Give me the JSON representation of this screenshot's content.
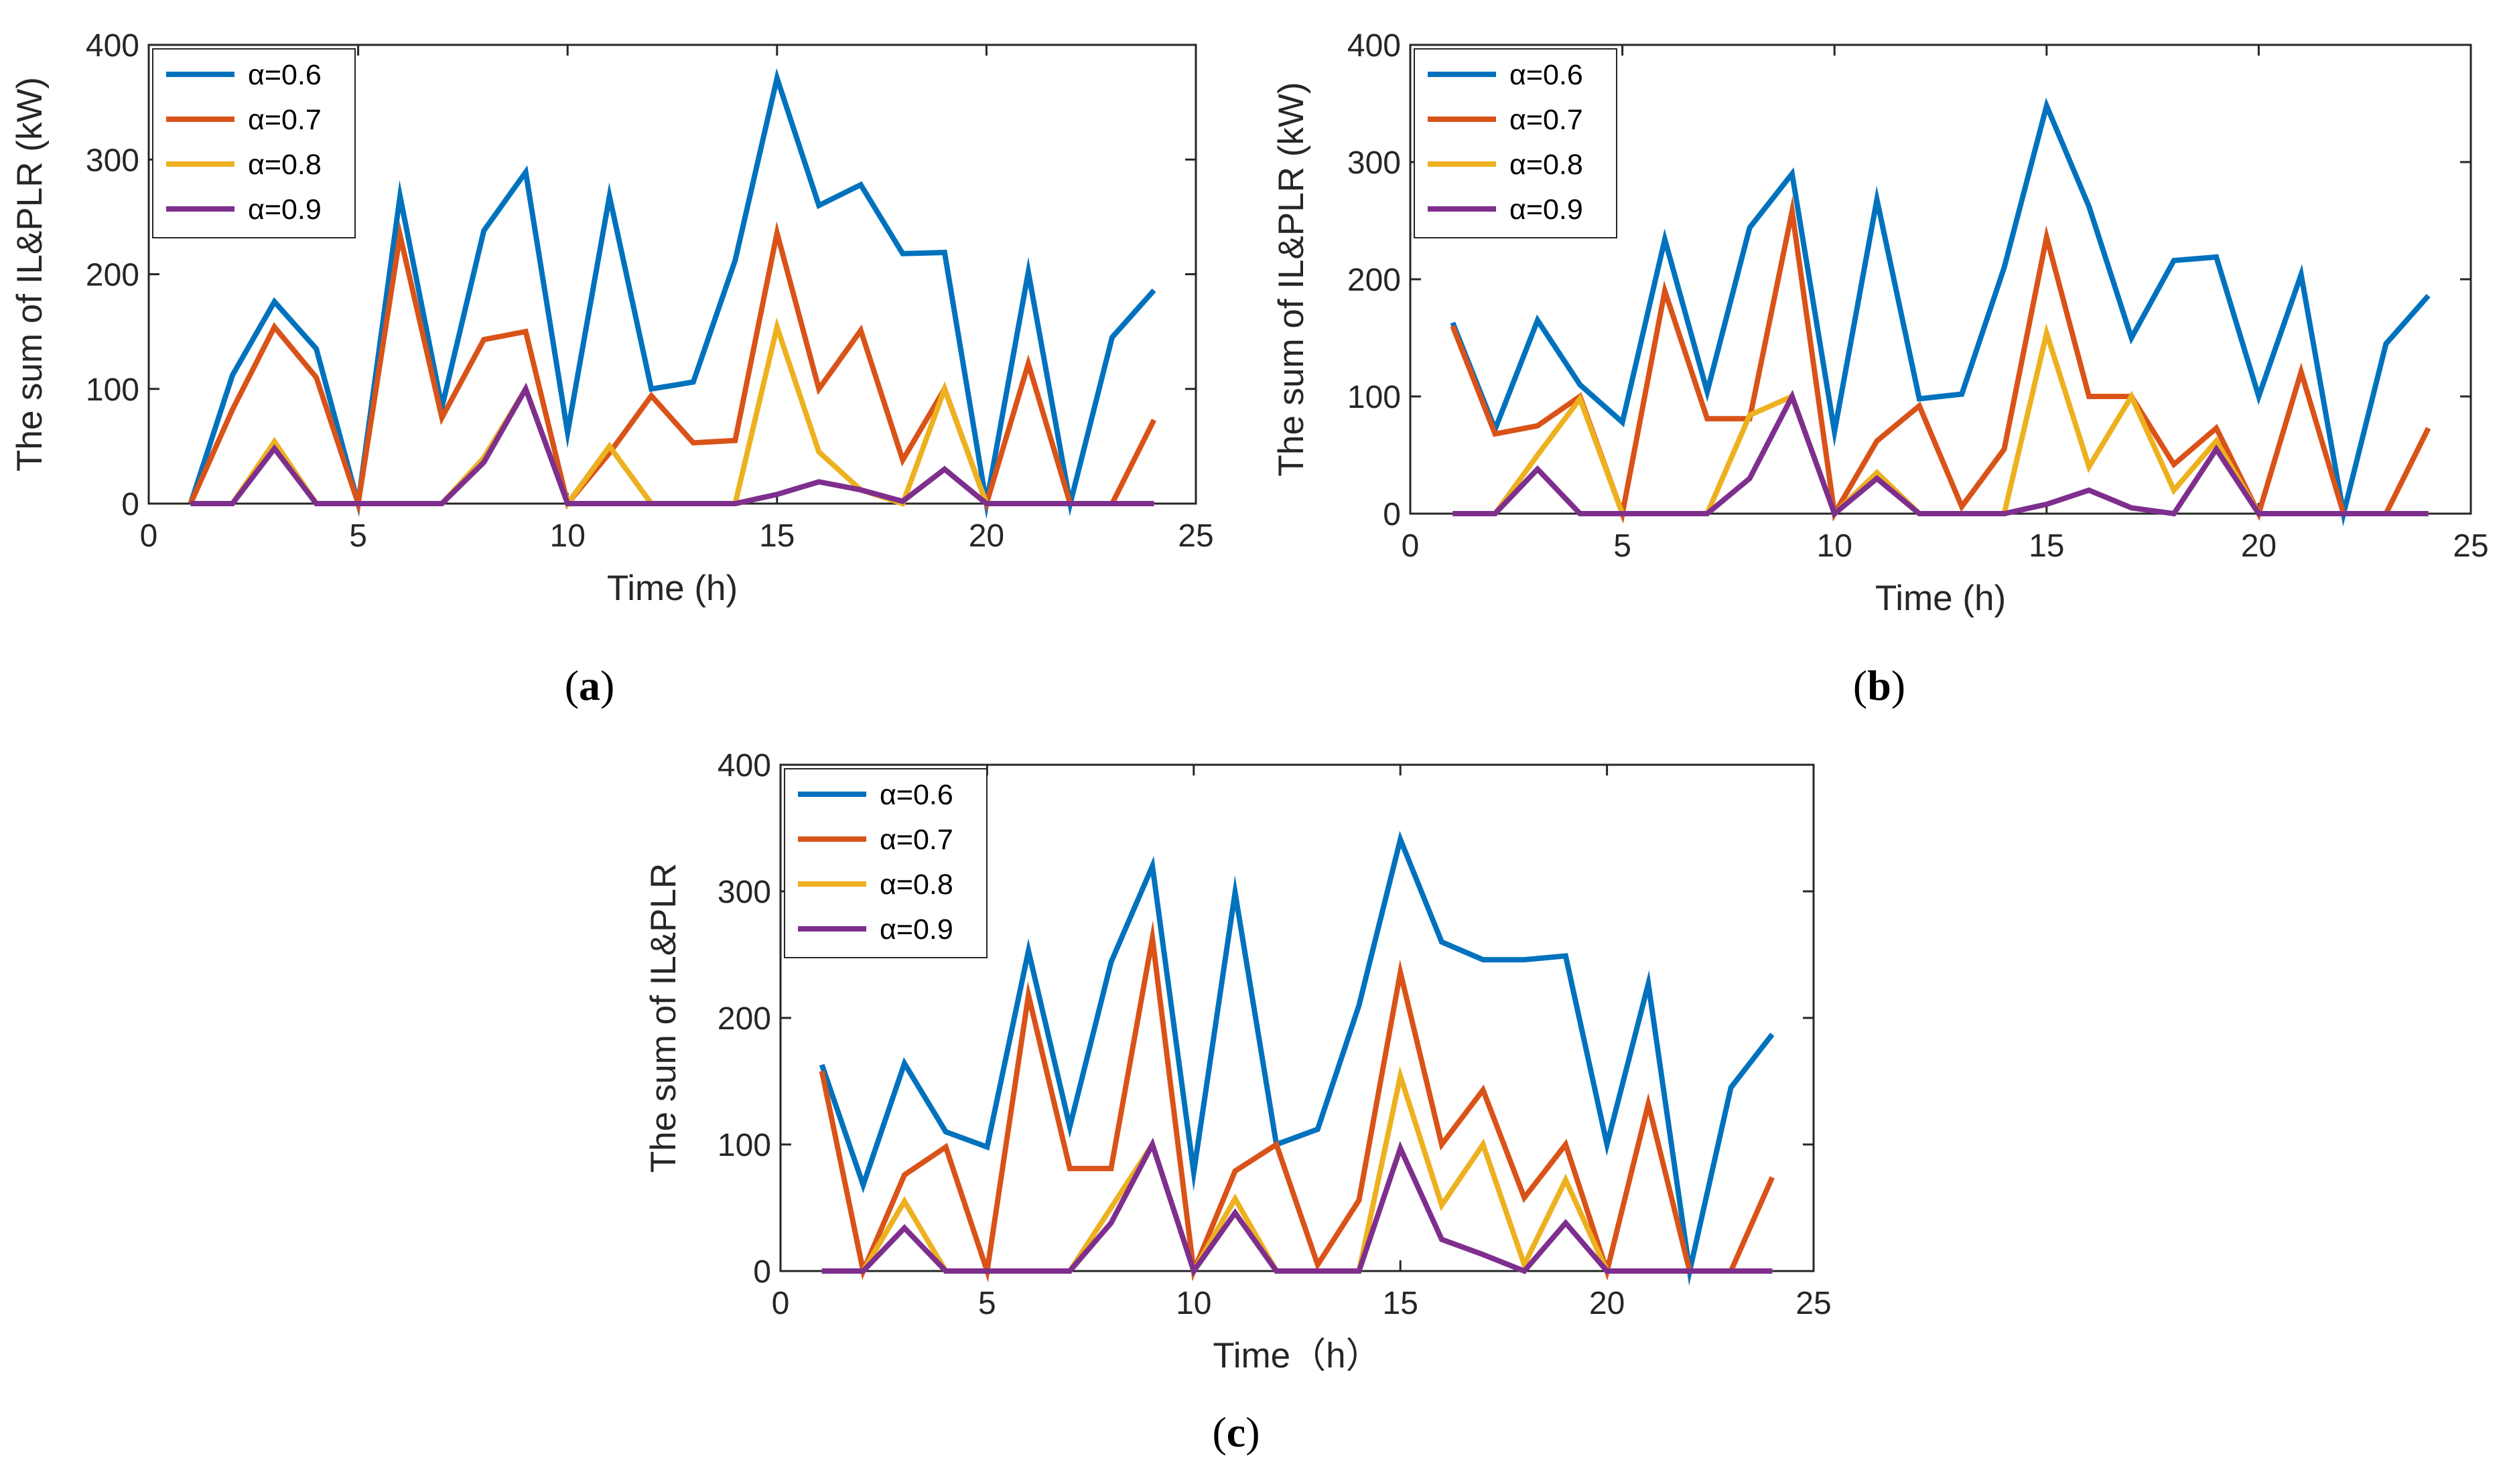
{
  "colors": {
    "alpha_0_6": "#0072BD",
    "alpha_0_7": "#D95319",
    "alpha_0_8": "#EDB120",
    "alpha_0_9": "#7E2F8E",
    "axis": "#262626",
    "text": "#000000"
  },
  "chart_data": [
    {
      "type": "line",
      "panel": {
        "open": "(",
        "letter": "a",
        "close": ")"
      },
      "xlabel": "Time (h)",
      "ylabel": "The sum of IL&PLR (kW)",
      "xlim": [
        0,
        25
      ],
      "ylim": [
        0,
        400
      ],
      "xticks": [
        "0",
        "5",
        "10",
        "15",
        "20",
        "25"
      ],
      "yticks": [
        "0",
        "100",
        "200",
        "300",
        "400"
      ],
      "legend_position": "top-left",
      "x": [
        1,
        2,
        3,
        4,
        5,
        6,
        7,
        8,
        9,
        10,
        11,
        12,
        13,
        14,
        15,
        16,
        17,
        18,
        19,
        20,
        21,
        22,
        23,
        24
      ],
      "series": [
        {
          "name": "α=0.6",
          "color_key": "alpha_0_6",
          "values": [
            0,
            112,
            176,
            135,
            0,
            268,
            84,
            238,
            289,
            62,
            268,
            100,
            106,
            212,
            371,
            260,
            278,
            218,
            219,
            0,
            202,
            0,
            145,
            186
          ]
        },
        {
          "name": "α=0.7",
          "color_key": "alpha_0_7",
          "values": [
            0,
            82,
            154,
            110,
            0,
            234,
            75,
            143,
            150,
            0,
            44,
            94,
            53,
            55,
            236,
            100,
            151,
            38,
            100,
            0,
            122,
            0,
            0,
            73
          ]
        },
        {
          "name": "α=0.8",
          "color_key": "alpha_0_8",
          "values": [
            0,
            0,
            54,
            0,
            0,
            0,
            0,
            40,
            100,
            0,
            50,
            0,
            0,
            0,
            154,
            45,
            12,
            0,
            100,
            0,
            0,
            0,
            0,
            0
          ]
        },
        {
          "name": "α=0.9",
          "color_key": "alpha_0_9",
          "values": [
            0,
            0,
            48,
            0,
            0,
            0,
            0,
            36,
            100,
            0,
            0,
            0,
            0,
            0,
            8,
            19,
            12,
            2,
            30,
            0,
            0,
            0,
            0,
            0
          ]
        }
      ]
    },
    {
      "type": "line",
      "panel": {
        "open": "(",
        "letter": "b",
        "close": ")"
      },
      "xlabel": "Time (h)",
      "ylabel": "The sum of IL&PLR (kW)",
      "xlim": [
        0,
        25
      ],
      "ylim": [
        0,
        400
      ],
      "xticks": [
        "0",
        "5",
        "10",
        "15",
        "20",
        "25"
      ],
      "yticks": [
        "0",
        "100",
        "200",
        "300",
        "400"
      ],
      "legend_position": "top-left",
      "x": [
        1,
        2,
        3,
        4,
        5,
        6,
        7,
        8,
        9,
        10,
        11,
        12,
        13,
        14,
        15,
        16,
        17,
        18,
        19,
        20,
        21,
        22,
        23,
        24
      ],
      "series": [
        {
          "name": "α=0.6",
          "color_key": "alpha_0_6",
          "values": [
            163,
            72,
            165,
            110,
            78,
            234,
            104,
            244,
            290,
            70,
            268,
            98,
            102,
            210,
            348,
            262,
            150,
            216,
            219,
            100,
            204,
            0,
            145,
            186
          ]
        },
        {
          "name": "α=0.7",
          "color_key": "alpha_0_7",
          "values": [
            160,
            68,
            75,
            100,
            0,
            190,
            81,
            81,
            258,
            0,
            62,
            92,
            6,
            55,
            236,
            100,
            100,
            42,
            73,
            0,
            121,
            0,
            0,
            73
          ]
        },
        {
          "name": "α=0.8",
          "color_key": "alpha_0_8",
          "values": [
            0,
            0,
            50,
            98,
            0,
            0,
            0,
            84,
            100,
            0,
            35,
            0,
            0,
            0,
            154,
            40,
            100,
            20,
            62,
            0,
            0,
            0,
            0,
            0
          ]
        },
        {
          "name": "α=0.9",
          "color_key": "alpha_0_9",
          "values": [
            0,
            0,
            38,
            0,
            0,
            0,
            0,
            30,
            100,
            0,
            30,
            0,
            0,
            0,
            8,
            20,
            5,
            0,
            55,
            0,
            0,
            0,
            0,
            0
          ]
        }
      ]
    },
    {
      "type": "line",
      "panel": {
        "open": "(",
        "letter": "c",
        "close": ")"
      },
      "xlabel": "Time（h）",
      "ylabel": "The sum of IL&PLR",
      "xlim": [
        0,
        25
      ],
      "ylim": [
        0,
        400
      ],
      "xticks": [
        "0",
        "5",
        "10",
        "15",
        "20",
        "25"
      ],
      "yticks": [
        "0",
        "100",
        "200",
        "300",
        "400"
      ],
      "legend_position": "top-left",
      "x": [
        1,
        2,
        3,
        4,
        5,
        6,
        7,
        8,
        9,
        10,
        11,
        12,
        13,
        14,
        15,
        16,
        17,
        18,
        19,
        20,
        21,
        22,
        23,
        24
      ],
      "series": [
        {
          "name": "α=0.6",
          "color_key": "alpha_0_6",
          "values": [
            163,
            68,
            164,
            110,
            98,
            253,
            114,
            244,
            320,
            78,
            299,
            100,
            112,
            210,
            341,
            260,
            246,
            246,
            249,
            100,
            227,
            0,
            145,
            187
          ]
        },
        {
          "name": "α=0.7",
          "color_key": "alpha_0_7",
          "values": [
            158,
            0,
            76,
            98,
            0,
            218,
            81,
            81,
            263,
            0,
            79,
            100,
            5,
            56,
            236,
            100,
            143,
            58,
            100,
            0,
            132,
            0,
            0,
            74
          ]
        },
        {
          "name": "α=0.8",
          "color_key": "alpha_0_8",
          "values": [
            0,
            0,
            55,
            0,
            0,
            0,
            0,
            50,
            100,
            0,
            57,
            0,
            0,
            0,
            154,
            52,
            100,
            5,
            72,
            0,
            0,
            0,
            0,
            0
          ]
        },
        {
          "name": "α=0.9",
          "color_key": "alpha_0_9",
          "values": [
            0,
            0,
            34,
            0,
            0,
            0,
            0,
            38,
            100,
            0,
            46,
            0,
            0,
            0,
            97,
            25,
            13,
            0,
            38,
            0,
            0,
            0,
            0,
            0
          ]
        }
      ]
    }
  ]
}
